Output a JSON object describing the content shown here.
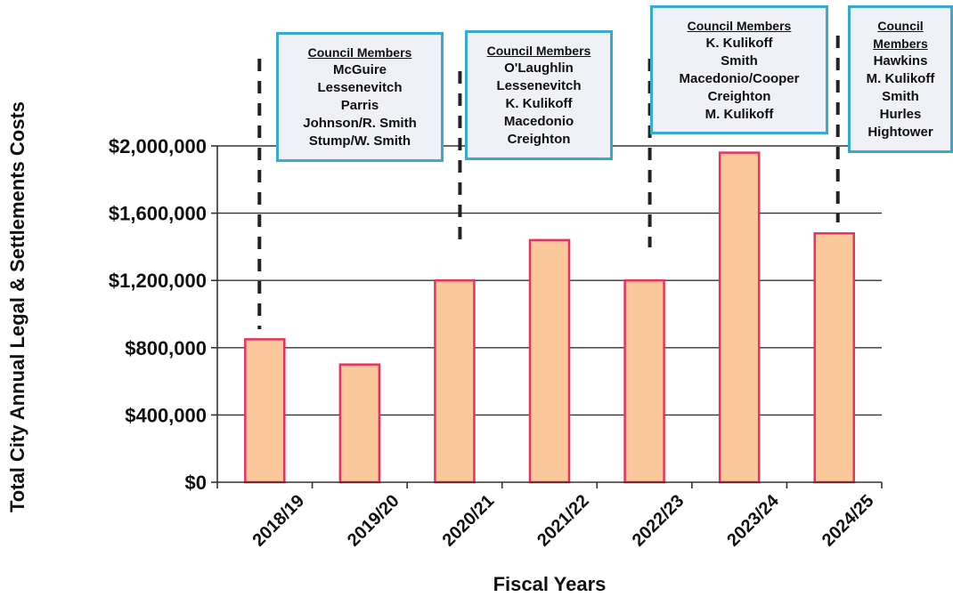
{
  "chart_data": {
    "type": "bar",
    "title": "",
    "xlabel": "Fiscal Years",
    "ylabel": "Total City Annual Legal & Settlements Costs",
    "categories": [
      "2018/19",
      "2019/20",
      "2020/21",
      "2021/22",
      "2022/23",
      "2023/24",
      "2024/25"
    ],
    "values": [
      850000,
      700000,
      1200000,
      1440000,
      1200000,
      1960000,
      1480000
    ],
    "ylim": [
      0,
      2000000
    ],
    "yticks": [
      0,
      400000,
      800000,
      1200000,
      1600000,
      2000000
    ],
    "ytick_labels": [
      "$0",
      "$400,000",
      "$800,000",
      "$1,200,000",
      "$1,600,000",
      "$2,000,000"
    ],
    "grid": "horizontal",
    "bar_fill": "#fbc89c",
    "bar_edge": "#e8325e",
    "divider_color": "#222222",
    "box_border": "#38a9cf",
    "box_fill": "#f0f1f6",
    "annotations": [
      {
        "title": "Council Members",
        "names": [
          "McGuire",
          "Lessenevitch",
          "Parris",
          "Johnson/R. Smith",
          "Stump/W. Smith"
        ]
      },
      {
        "title": "Council Members",
        "names": [
          "O'Laughlin",
          "Lessenevitch",
          "K. Kulikoff",
          "Macedonio",
          "Creighton"
        ]
      },
      {
        "title": "Council Members",
        "names": [
          "K. Kulikoff",
          "Smith",
          "Macedonio/Cooper",
          "Creighton",
          "M. Kulikoff"
        ]
      },
      {
        "title": "Council\nMembers",
        "names": [
          "Hawkins",
          "M. Kulikoff",
          "Smith",
          "Hurles",
          "Hightower"
        ]
      }
    ]
  }
}
